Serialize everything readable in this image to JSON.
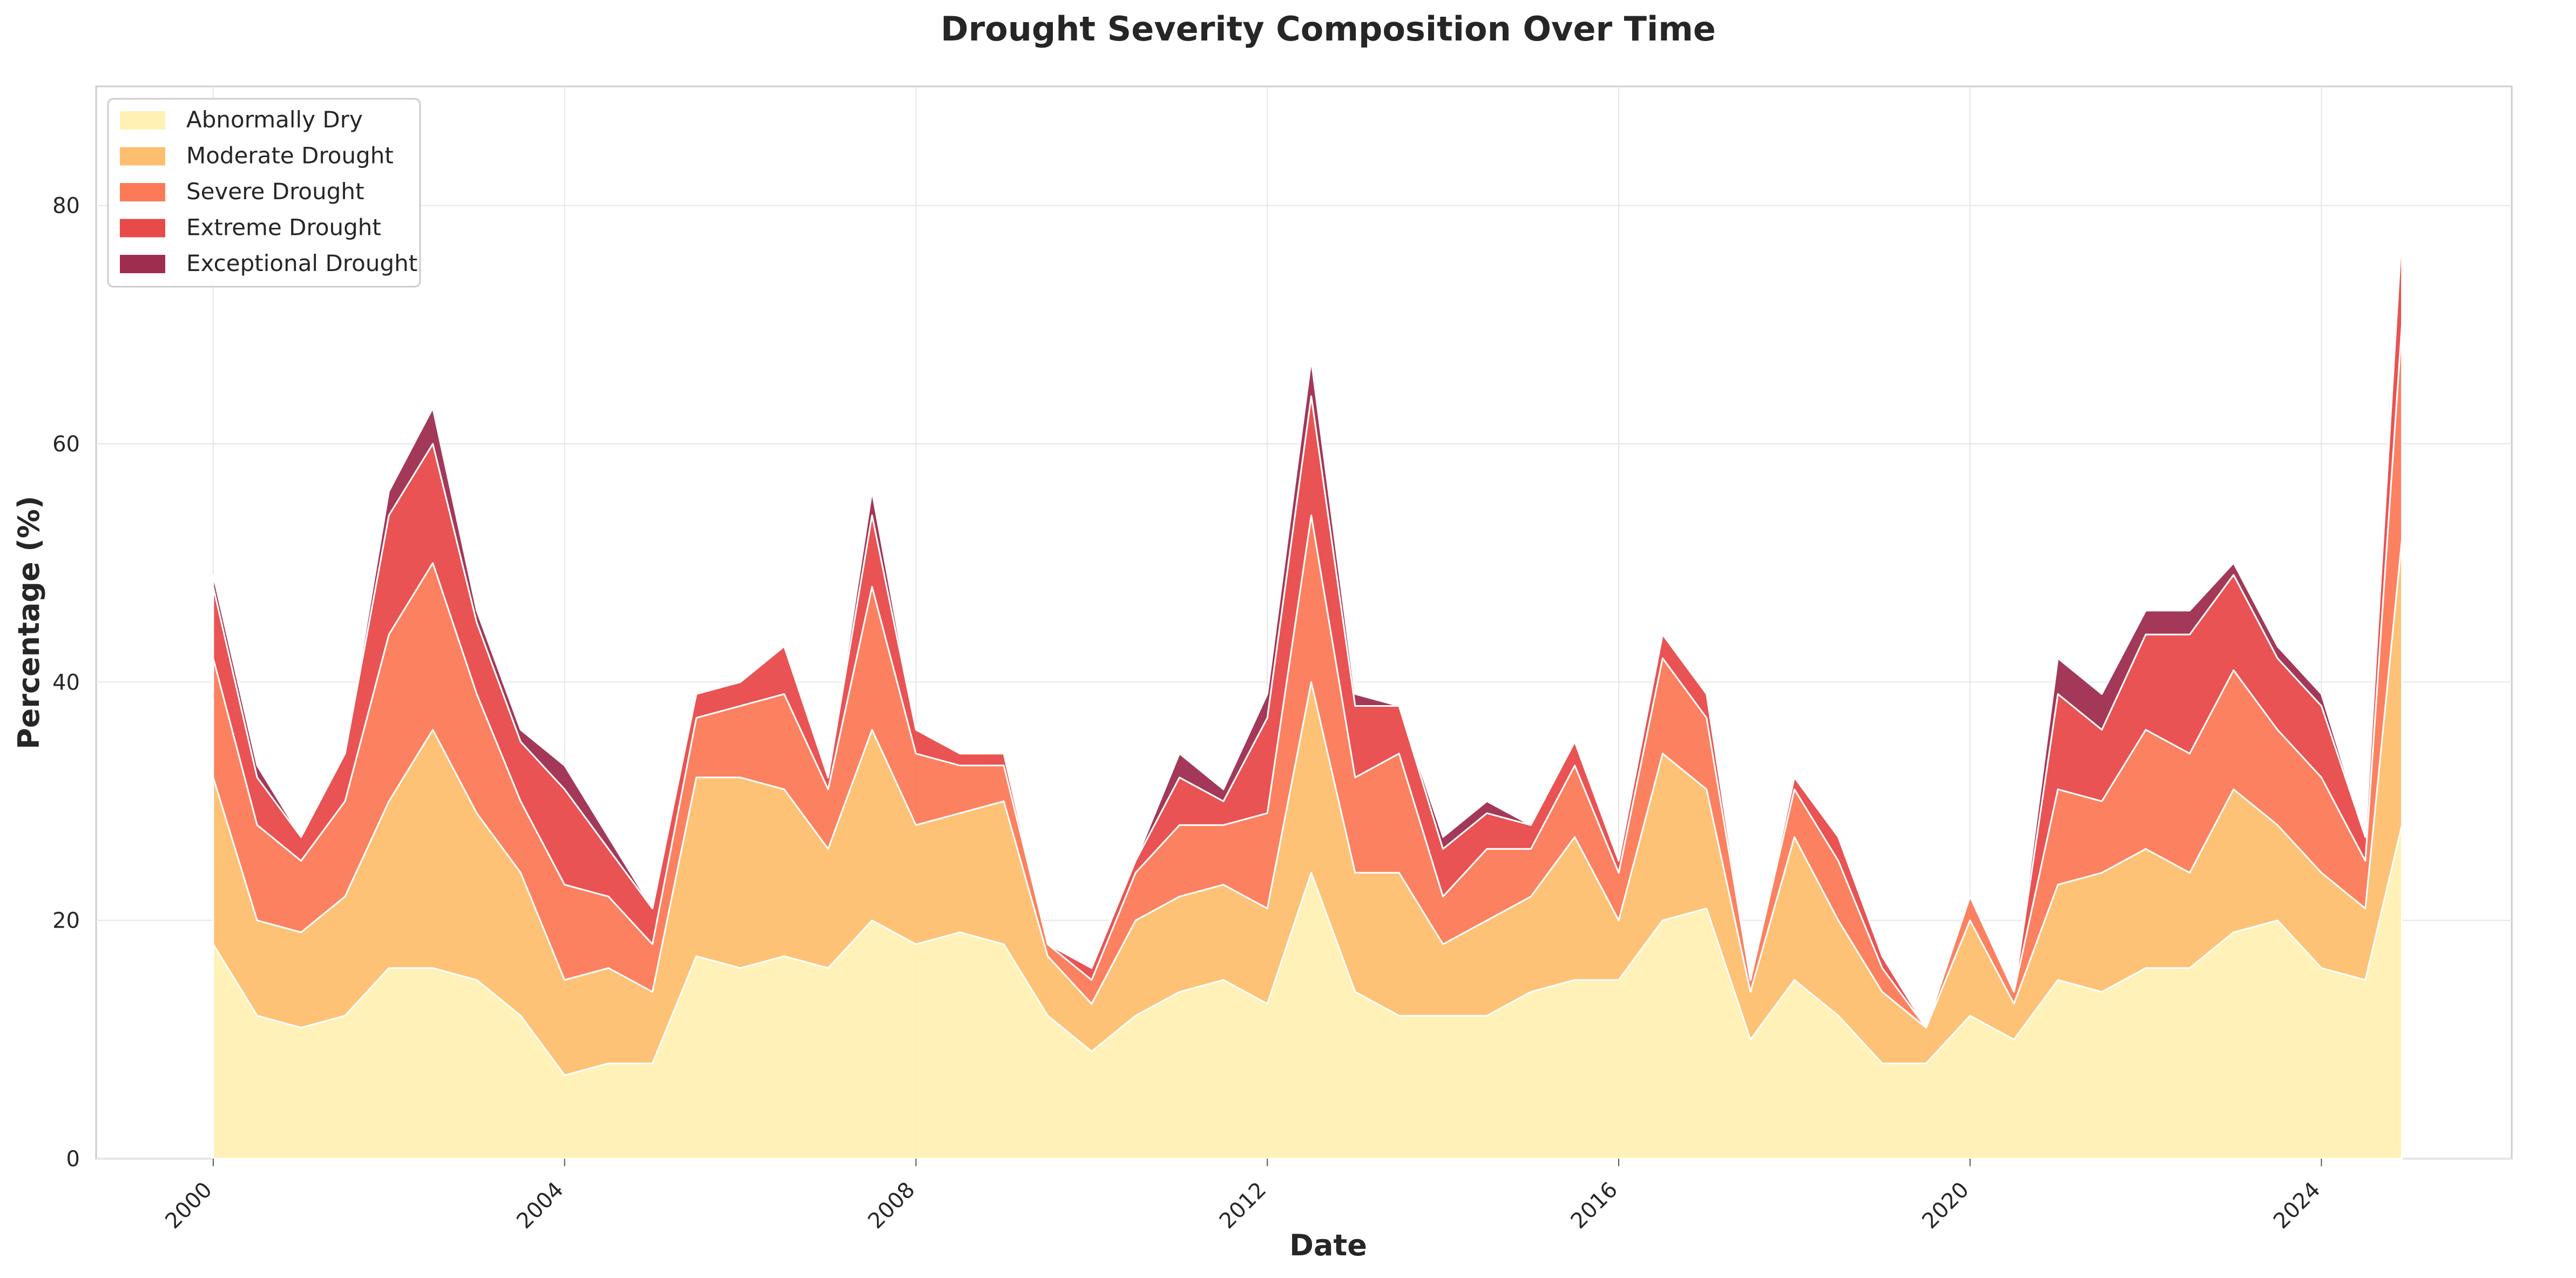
{
  "chart_data": {
    "type": "area",
    "title": "Drought Severity Composition Over Time",
    "xlabel": "Date",
    "ylabel": "Percentage (%)",
    "x_ticks": [
      "2000",
      "2004",
      "2008",
      "2012",
      "2016",
      "2020",
      "2024"
    ],
    "y_ticks": [
      "0",
      "20",
      "40",
      "60",
      "80"
    ],
    "xlim": [
      "1998-09",
      "2026-03"
    ],
    "ylim": [
      0,
      90
    ],
    "grid": true,
    "legend_position": "top-left",
    "stacked": true,
    "x": [
      "2000-01",
      "2000-07",
      "2001-01",
      "2001-07",
      "2002-01",
      "2002-07",
      "2003-01",
      "2003-07",
      "2004-01",
      "2004-07",
      "2005-01",
      "2005-07",
      "2006-01",
      "2006-07",
      "2007-01",
      "2007-07",
      "2008-01",
      "2008-07",
      "2009-01",
      "2009-07",
      "2010-01",
      "2010-07",
      "2011-01",
      "2011-07",
      "2012-01",
      "2012-07",
      "2013-01",
      "2013-07",
      "2014-01",
      "2014-07",
      "2015-01",
      "2015-07",
      "2016-01",
      "2016-07",
      "2017-01",
      "2017-07",
      "2018-01",
      "2018-07",
      "2019-01",
      "2019-07",
      "2020-01",
      "2020-07",
      "2021-01",
      "2021-07",
      "2022-01",
      "2022-07",
      "2023-01",
      "2023-07",
      "2024-01",
      "2024-07",
      "2024-12"
    ],
    "series": [
      {
        "name": "Abnormally Dry",
        "color": "#fff0b3",
        "values": [
          18,
          12,
          11,
          12,
          16,
          16,
          15,
          12,
          7,
          8,
          8,
          17,
          16,
          17,
          16,
          20,
          18,
          19,
          18,
          12,
          9,
          12,
          14,
          15,
          13,
          24,
          14,
          12,
          12,
          12,
          14,
          15,
          15,
          20,
          21,
          10,
          15,
          12,
          8,
          8,
          12,
          10,
          15,
          14,
          16,
          16,
          19,
          20,
          16,
          15,
          28
        ]
      },
      {
        "name": "Moderate Drought",
        "color": "#fdbf6f",
        "values": [
          14,
          8,
          8,
          10,
          14,
          20,
          14,
          12,
          8,
          8,
          6,
          15,
          16,
          14,
          10,
          16,
          10,
          10,
          12,
          5,
          4,
          8,
          8,
          8,
          8,
          16,
          10,
          12,
          6,
          8,
          8,
          12,
          5,
          14,
          10,
          4,
          12,
          8,
          6,
          3,
          8,
          3,
          8,
          10,
          10,
          8,
          12,
          8,
          8,
          6,
          24
        ]
      },
      {
        "name": "Severe Drought",
        "color": "#fc7a57",
        "values": [
          10,
          8,
          6,
          8,
          14,
          14,
          10,
          6,
          8,
          6,
          4,
          5,
          6,
          8,
          5,
          12,
          6,
          4,
          3,
          1,
          2,
          4,
          6,
          5,
          8,
          14,
          8,
          10,
          4,
          6,
          4,
          6,
          4,
          8,
          6,
          1,
          4,
          5,
          2,
          0,
          2,
          1,
          8,
          6,
          10,
          10,
          10,
          8,
          8,
          4,
          18
        ]
      },
      {
        "name": "Extreme Drought",
        "color": "#e84a4a",
        "values": [
          6,
          4,
          2,
          4,
          10,
          10,
          6,
          5,
          8,
          4,
          3,
          2,
          2,
          4,
          1,
          6,
          2,
          1,
          1,
          0,
          1,
          1,
          4,
          2,
          8,
          10,
          6,
          4,
          4,
          3,
          2,
          2,
          1,
          2,
          2,
          0,
          1,
          2,
          1,
          0,
          0,
          0,
          8,
          6,
          8,
          10,
          8,
          6,
          6,
          2,
          8
        ]
      },
      {
        "name": "Exceptional Drought",
        "color": "#9e2d4f",
        "values": [
          1,
          1,
          0,
          0,
          2,
          3,
          1,
          1,
          2,
          1,
          0,
          0,
          0,
          0,
          0,
          2,
          0,
          0,
          0,
          0,
          0,
          0,
          2,
          1,
          2,
          3,
          1,
          0,
          1,
          1,
          0,
          0,
          0,
          0,
          0,
          0,
          0,
          0,
          0,
          0,
          0,
          0,
          3,
          3,
          2,
          2,
          1,
          1,
          1,
          0,
          1
        ]
      }
    ]
  }
}
